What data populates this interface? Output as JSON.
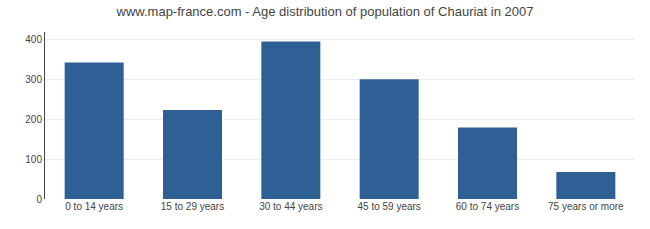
{
  "chart_data": {
    "type": "bar",
    "title": "www.map-france.com - Age distribution of population of Chauriat in 2007",
    "categories": [
      "0 to 14 years",
      "15 to 29 years",
      "30 to 44 years",
      "45 to 59 years",
      "60 to 74 years",
      "75 years or more"
    ],
    "values": [
      343,
      224,
      396,
      301,
      180,
      68
    ],
    "color": "#2e6096",
    "ylim": [
      0,
      420
    ],
    "yticks": [
      0,
      100,
      200,
      300,
      400
    ],
    "grid": true
  }
}
